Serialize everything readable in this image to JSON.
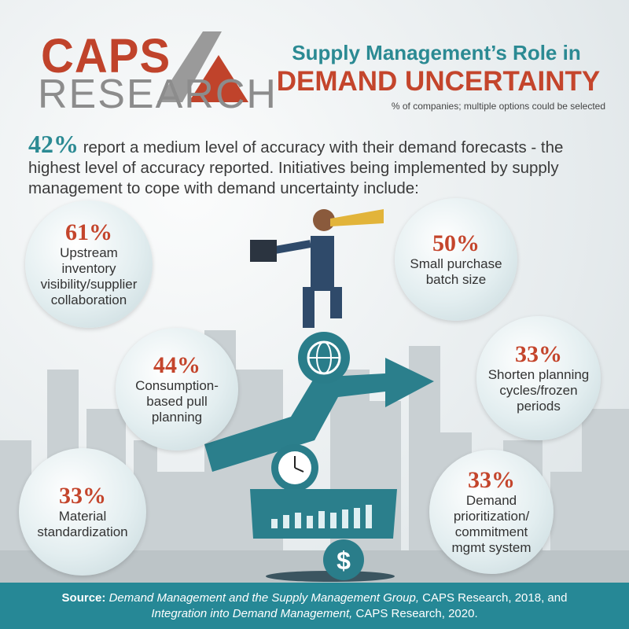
{
  "logo": {
    "top": "CAPS",
    "bottom": "RESEARCH"
  },
  "header": {
    "title_line1": "Supply Management’s Role in",
    "title_line2": "DEMAND UNCERTAINTY",
    "subtitle": "% of companies; multiple options could be selected"
  },
  "intro": {
    "highlight": "42%",
    "text": " report a medium level of accuracy with their demand forecasts - the highest level of accuracy reported. Initiatives being implemented by supply management to cope with demand uncertainty include:"
  },
  "initiatives": [
    {
      "pct": "61%",
      "label": "Upstream inventory visibility/supplier collaboration"
    },
    {
      "pct": "50%",
      "label": "Small purchase batch size"
    },
    {
      "pct": "44%",
      "label": "Consumption-based pull planning"
    },
    {
      "pct": "33%",
      "label": "Shorten planning cycles/frozen periods"
    },
    {
      "pct": "33%",
      "label": "Material standardization"
    },
    {
      "pct": "33%",
      "label": "Demand prioritization/ commitment mgmt system"
    }
  ],
  "footer": {
    "source_label": "Source:",
    "ref1_title": "Demand Management and the Supply Management Group,",
    "ref1_rest": " CAPS Research, 2018, and",
    "ref2_title": "Integration into Demand Management,",
    "ref2_rest": " CAPS Research, 2020."
  },
  "colors": {
    "teal": "#2b8a93",
    "red": "#c4452c",
    "gray": "#8c8c8c",
    "footer": "#268896"
  },
  "icons": [
    "globe-icon",
    "clock-icon",
    "bar-chart-icon",
    "dollar-icon",
    "trend-arrow-icon",
    "spyglass-icon",
    "briefcase-icon"
  ]
}
